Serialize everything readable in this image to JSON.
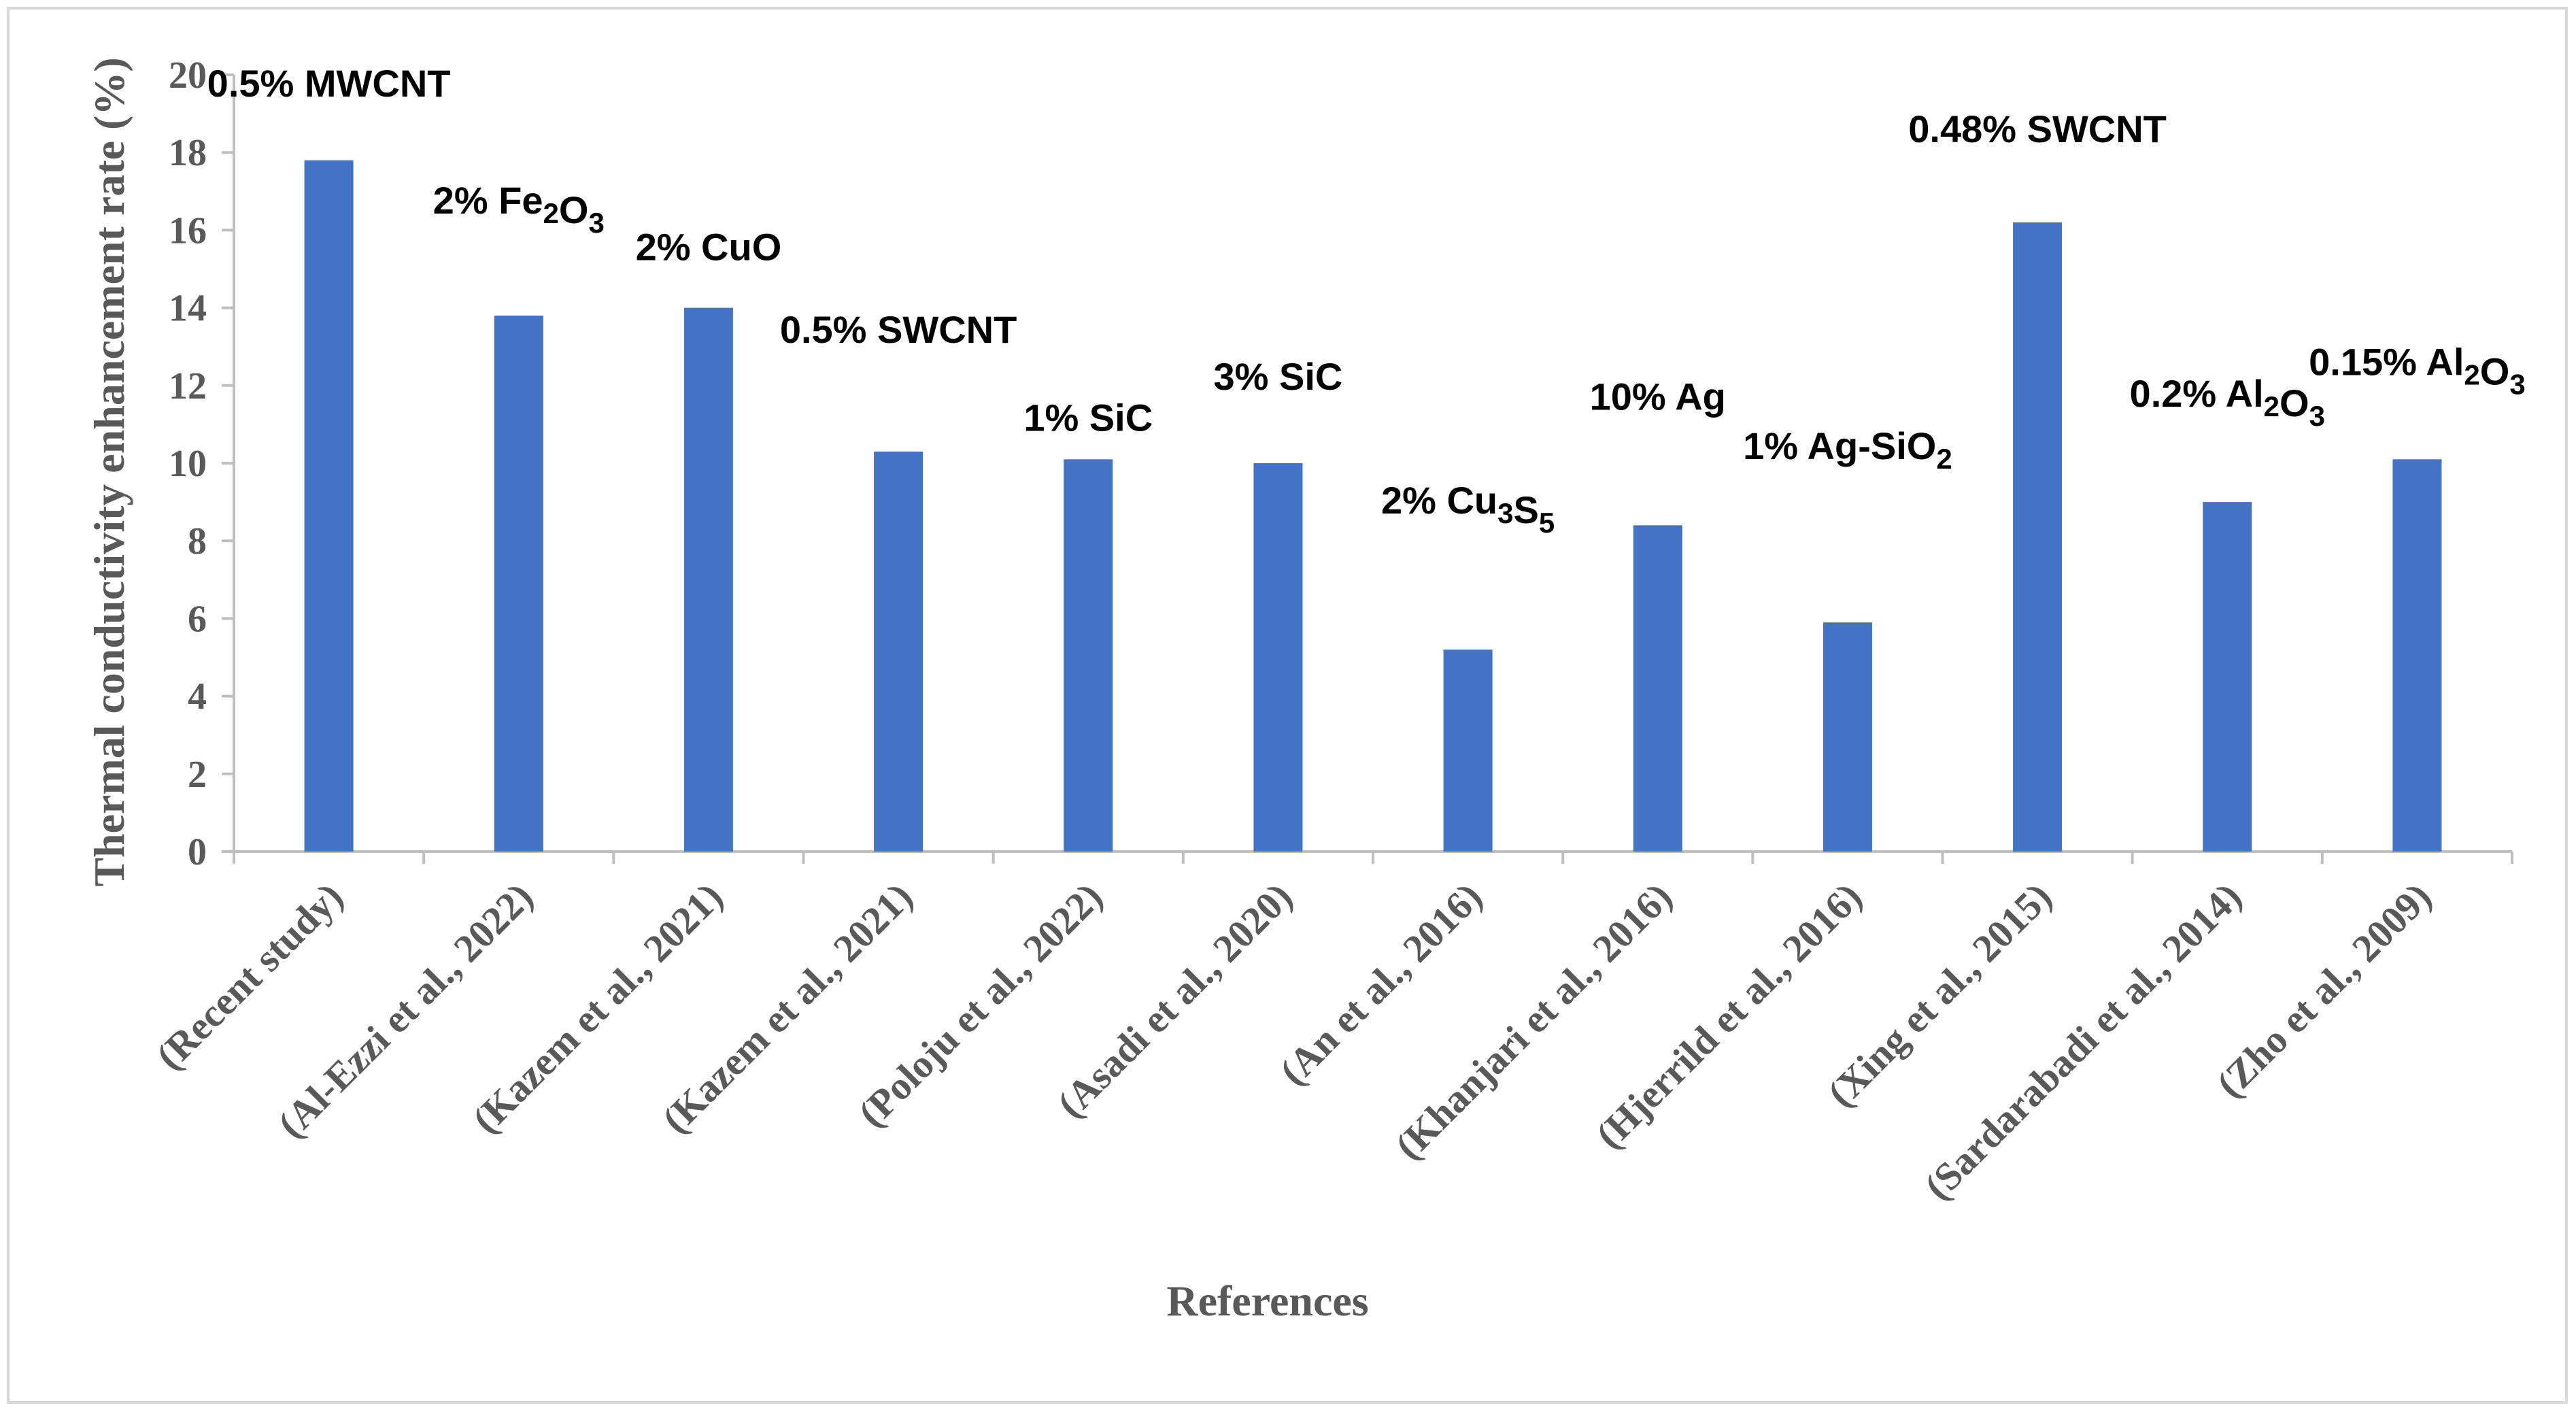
{
  "chart_data": {
    "type": "bar",
    "title": "",
    "xlabel": "References",
    "ylabel": "Thermal conductivity enhancement rate (%)",
    "ylim": [
      0,
      20
    ],
    "ytick_step": 2,
    "grid": false,
    "legend": "none",
    "bar_color": "#4472c4",
    "axis_color": "#bfbfbf",
    "categories": [
      "(Recent study)",
      "(Al-Ezzi et al., 2022)",
      "(Kazem et al., 2021)",
      "(Kazem et al., 2021)",
      "(Poloju et al., 2022)",
      "(Asadi et al., 2020)",
      "(An et al., 2016)",
      "(Khanjari et al., 2016)",
      "(Hjerrild et al., 2016)",
      "(Xing et al., 2015)",
      "(Sardarabadi et al., 2014)",
      "(Zho et al., 2009)"
    ],
    "values": [
      17.8,
      13.8,
      14.0,
      10.3,
      10.1,
      10.0,
      5.2,
      8.4,
      5.9,
      16.2,
      9.0,
      10.1
    ],
    "annotations": [
      {
        "parts": [
          {
            "t": "0.5% MWCNT"
          }
        ]
      },
      {
        "parts": [
          {
            "t": "2% Fe"
          },
          {
            "t": "2",
            "sub": true
          },
          {
            "t": "O"
          },
          {
            "t": "3",
            "sub": true
          }
        ]
      },
      {
        "parts": [
          {
            "t": "2% CuO"
          }
        ]
      },
      {
        "parts": [
          {
            "t": "0.5% SWCNT"
          }
        ]
      },
      {
        "parts": [
          {
            "t": "1% SiC"
          }
        ]
      },
      {
        "parts": [
          {
            "t": "3% SiC"
          }
        ]
      },
      {
        "parts": [
          {
            "t": "2% Cu"
          },
          {
            "t": "3",
            "sub": true
          },
          {
            "t": "S"
          },
          {
            "t": "5",
            "sub": true
          }
        ]
      },
      {
        "parts": [
          {
            "t": "10% Ag"
          }
        ]
      },
      {
        "parts": [
          {
            "t": "1% Ag-SiO"
          },
          {
            "t": "2",
            "sub": true
          }
        ]
      },
      {
        "parts": [
          {
            "t": "0.48% SWCNT"
          }
        ]
      },
      {
        "parts": [
          {
            "t": "0.2% Al"
          },
          {
            "t": "2",
            "sub": true
          },
          {
            "t": "O"
          },
          {
            "t": "3",
            "sub": true
          }
        ]
      },
      {
        "parts": [
          {
            "t": "0.15% Al"
          },
          {
            "t": "2",
            "sub": true
          },
          {
            "t": "O"
          },
          {
            "t": "3",
            "sub": true
          }
        ]
      }
    ]
  }
}
